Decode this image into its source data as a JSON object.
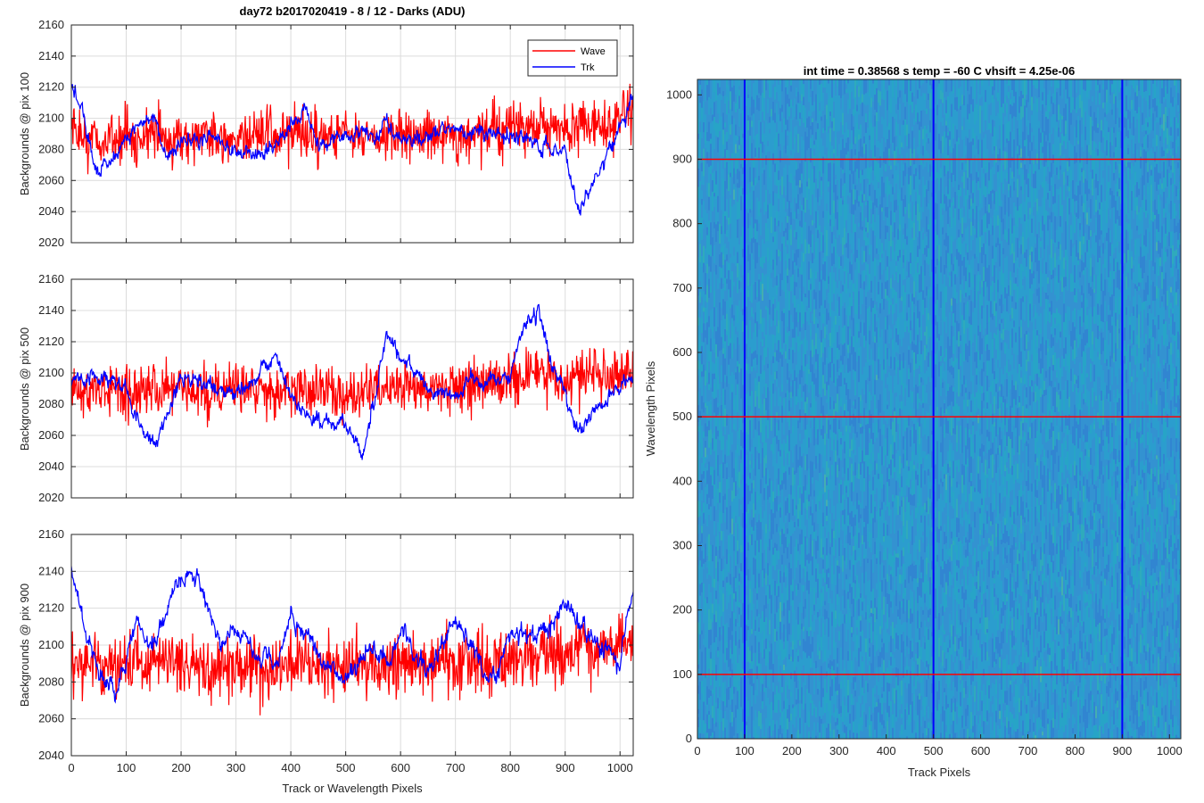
{
  "figure": {
    "title": "day72 b2017020419 - 8 / 12 - Darks (ADU)",
    "xlabel": "Track or Wavelength Pixels"
  },
  "chart_data": [
    {
      "type": "line",
      "ylabel": "Backgrounds @ pix 100",
      "xlim": [
        0,
        1024
      ],
      "ylim": [
        2020,
        2160
      ],
      "xticks": [
        0,
        100,
        200,
        300,
        400,
        500,
        600,
        700,
        800,
        900,
        1000
      ],
      "yticks": [
        2020,
        2040,
        2060,
        2080,
        2100,
        2120,
        2140,
        2160
      ],
      "grid": true,
      "legend": "top-right",
      "series": [
        {
          "name": "Wave",
          "color": "#ff0000",
          "x": [
            0,
            50,
            100,
            150,
            200,
            250,
            300,
            350,
            400,
            450,
            500,
            550,
            600,
            650,
            700,
            750,
            800,
            850,
            900,
            950,
            1000,
            1023
          ],
          "values": [
            2090,
            2085,
            2088,
            2090,
            2087,
            2089,
            2086,
            2090,
            2088,
            2087,
            2090,
            2085,
            2089,
            2091,
            2088,
            2090,
            2095,
            2093,
            2092,
            2095,
            2100,
            2105
          ],
          "noise": 16
        },
        {
          "name": "Trk",
          "color": "#0000ff",
          "x": [
            0,
            20,
            50,
            80,
            100,
            150,
            175,
            200,
            250,
            300,
            350,
            400,
            425,
            450,
            500,
            550,
            575,
            600,
            650,
            700,
            750,
            800,
            850,
            900,
            925,
            950,
            1000,
            1023
          ],
          "values": [
            2120,
            2100,
            2065,
            2075,
            2090,
            2100,
            2070,
            2085,
            2090,
            2078,
            2076,
            2092,
            2105,
            2085,
            2090,
            2088,
            2100,
            2085,
            2088,
            2095,
            2092,
            2088,
            2085,
            2080,
            2040,
            2060,
            2095,
            2110
          ],
          "noise": 4
        }
      ]
    },
    {
      "type": "line",
      "ylabel": "Backgrounds @ pix 500",
      "xlim": [
        0,
        1024
      ],
      "ylim": [
        2020,
        2160
      ],
      "xticks": [
        0,
        100,
        200,
        300,
        400,
        500,
        600,
        700,
        800,
        900,
        1000
      ],
      "yticks": [
        2020,
        2040,
        2060,
        2080,
        2100,
        2120,
        2140,
        2160
      ],
      "grid": true,
      "series": [
        {
          "name": "Wave",
          "color": "#ff0000",
          "x": [
            0,
            50,
            100,
            150,
            200,
            250,
            300,
            350,
            400,
            450,
            500,
            550,
            600,
            650,
            700,
            750,
            800,
            850,
            900,
            950,
            1000,
            1023
          ],
          "values": [
            2088,
            2090,
            2087,
            2092,
            2090,
            2088,
            2091,
            2090,
            2089,
            2091,
            2088,
            2090,
            2092,
            2090,
            2091,
            2093,
            2095,
            2097,
            2095,
            2098,
            2097,
            2100
          ],
          "noise": 16
        },
        {
          "name": "Trk",
          "color": "#0000ff",
          "x": [
            0,
            50,
            100,
            125,
            150,
            200,
            250,
            300,
            350,
            375,
            400,
            450,
            500,
            530,
            550,
            575,
            600,
            650,
            700,
            750,
            800,
            825,
            850,
            875,
            900,
            925,
            950,
            1000,
            1023
          ],
          "values": [
            2095,
            2100,
            2090,
            2070,
            2055,
            2095,
            2095,
            2085,
            2105,
            2110,
            2085,
            2070,
            2070,
            2048,
            2080,
            2125,
            2110,
            2090,
            2085,
            2095,
            2100,
            2130,
            2140,
            2105,
            2085,
            2065,
            2075,
            2090,
            2100
          ],
          "noise": 4
        }
      ]
    },
    {
      "type": "line",
      "ylabel": "Backgrounds @ pix 900",
      "xlim": [
        0,
        1024
      ],
      "ylim": [
        2040,
        2160
      ],
      "xticks": [
        0,
        100,
        200,
        300,
        400,
        500,
        600,
        700,
        800,
        900,
        1000
      ],
      "yticks": [
        2040,
        2060,
        2080,
        2100,
        2120,
        2140,
        2160
      ],
      "grid": true,
      "series": [
        {
          "name": "Wave",
          "color": "#ff0000",
          "x": [
            0,
            50,
            100,
            150,
            200,
            250,
            300,
            350,
            400,
            450,
            500,
            550,
            600,
            650,
            700,
            750,
            800,
            850,
            900,
            950,
            1000,
            1023
          ],
          "values": [
            2092,
            2088,
            2090,
            2089,
            2091,
            2088,
            2090,
            2087,
            2089,
            2090,
            2088,
            2091,
            2089,
            2090,
            2088,
            2092,
            2090,
            2094,
            2095,
            2097,
            2100,
            2102
          ],
          "noise": 16
        },
        {
          "name": "Trk",
          "color": "#0000ff",
          "x": [
            0,
            20,
            50,
            80,
            120,
            150,
            190,
            220,
            250,
            275,
            300,
            350,
            375,
            400,
            450,
            470,
            500,
            550,
            575,
            600,
            650,
            700,
            750,
            775,
            800,
            850,
            900,
            950,
            1000,
            1023
          ],
          "values": [
            2140,
            2115,
            2085,
            2075,
            2110,
            2095,
            2135,
            2140,
            2120,
            2100,
            2110,
            2095,
            2090,
            2118,
            2095,
            2090,
            2080,
            2100,
            2090,
            2110,
            2085,
            2115,
            2085,
            2085,
            2105,
            2105,
            2120,
            2105,
            2090,
            2130
          ],
          "noise": 4
        }
      ]
    },
    {
      "type": "heatmap",
      "title": "int time = 0.38568 s    temp = -60 C    vhsift = 4.25e-06",
      "xlabel": "Track Pixels",
      "ylabel": "Wavelength Pixels",
      "xlim": [
        0,
        1024
      ],
      "ylim": [
        0,
        1024
      ],
      "xticks": [
        0,
        100,
        200,
        300,
        400,
        500,
        600,
        700,
        800,
        900,
        1000
      ],
      "yticks": [
        0,
        100,
        200,
        300,
        400,
        500,
        600,
        700,
        800,
        900,
        1000
      ],
      "colormap": "parula",
      "base_color": "#3aa0c8",
      "vertical_markers": {
        "color": "#0000ff",
        "x": [
          100,
          500,
          900
        ]
      },
      "horizontal_markers": {
        "color": "#ff0000",
        "y": [
          100,
          500,
          900
        ]
      }
    }
  ]
}
